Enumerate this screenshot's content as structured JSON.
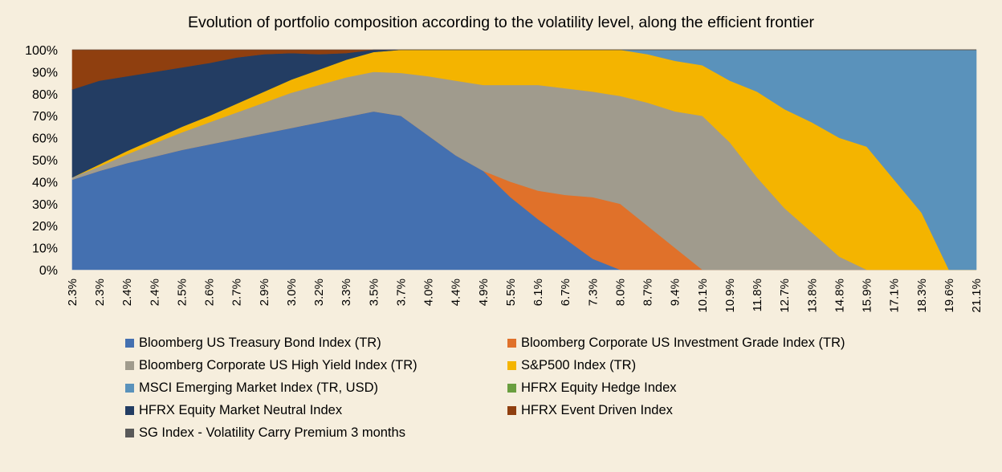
{
  "chart_data": {
    "type": "area",
    "stacked": true,
    "normalized": true,
    "title": "Evolution of portfolio composition according to the volatility level, along the efficient frontier",
    "xlabel": "",
    "ylabel": "",
    "ylim": [
      0,
      100
    ],
    "y_ticks": [
      "0%",
      "10%",
      "20%",
      "30%",
      "40%",
      "50%",
      "60%",
      "70%",
      "80%",
      "90%",
      "100%"
    ],
    "x_tick_labels": [
      "2.3%",
      "2.3%",
      "2.4%",
      "2.4%",
      "2.5%",
      "2.6%",
      "2.7%",
      "2.9%",
      "3.0%",
      "3.2%",
      "3.3%",
      "3.5%",
      "3.7%",
      "4.0%",
      "4.4%",
      "4.9%",
      "5.5%",
      "6.1%",
      "6.7%",
      "7.3%",
      "8.0%",
      "8.7%",
      "9.4%",
      "10.1%",
      "10.9%",
      "11.8%",
      "12.7%",
      "13.8%",
      "14.8%",
      "15.9%",
      "17.1%",
      "18.3%",
      "19.6%",
      "21.1%"
    ],
    "grid": false,
    "legend_position": "bottom",
    "series": [
      {
        "name": "Bloomberg US Treasury Bond Index (TR)",
        "color": "#4470b0",
        "values": [
          41,
          45,
          48.5,
          51.5,
          54.5,
          57,
          59.5,
          62,
          64.5,
          67,
          69.5,
          72,
          70,
          61,
          52,
          45,
          33,
          23,
          14,
          5,
          0,
          0,
          0,
          0,
          0,
          0,
          0,
          0,
          0,
          0,
          0,
          0,
          0,
          0
        ]
      },
      {
        "name": "Bloomberg Corporate US Investment Grade Index (TR)",
        "color": "#e0712a",
        "values": [
          0,
          0,
          0,
          0,
          0,
          0,
          0,
          0,
          0,
          0,
          0,
          0,
          0,
          0,
          0,
          0,
          7,
          13,
          20,
          28,
          30,
          20,
          10,
          0,
          0,
          0,
          0,
          0,
          0,
          0,
          0,
          0,
          0,
          0
        ]
      },
      {
        "name": "Bloomberg Corporate US High Yield Index (TR)",
        "color": "#a09b8d",
        "values": [
          1,
          2,
          4,
          6,
          8,
          10,
          12,
          14,
          16,
          17,
          18,
          18,
          19.5,
          27,
          34,
          39,
          44,
          48,
          48.5,
          48,
          49,
          56,
          62,
          70,
          58,
          42,
          28,
          17,
          6,
          0,
          0,
          0,
          0,
          0
        ]
      },
      {
        "name": "S&P500 Index (TR)",
        "color": "#f4b400",
        "values": [
          0,
          1,
          1.5,
          2,
          2.5,
          3,
          4,
          5,
          6,
          7,
          8,
          9,
          10.5,
          12,
          14,
          16,
          16,
          16,
          17.5,
          19,
          21,
          22,
          23,
          23,
          28,
          39,
          45,
          50,
          54,
          56,
          41,
          26,
          0,
          0
        ]
      },
      {
        "name": "MSCI Emerging Market Index (TR, USD)",
        "color": "#5a92bb",
        "values": [
          0,
          0,
          0,
          0,
          0,
          0,
          0,
          0,
          0,
          0,
          0,
          0,
          0,
          0,
          0,
          0,
          0,
          0,
          0,
          0,
          0,
          2,
          5,
          7,
          14,
          19,
          27,
          33,
          40,
          44,
          59,
          74,
          100,
          100
        ]
      },
      {
        "name": "HFRX Equity Hedge Index",
        "color": "#6a9e3f",
        "values": [
          0,
          0,
          0,
          0,
          0,
          0,
          0,
          0,
          0,
          0,
          0,
          0,
          0,
          0,
          0,
          0,
          0,
          0,
          0,
          0,
          0,
          0,
          0,
          0,
          0,
          0,
          0,
          0,
          0,
          0,
          0,
          0,
          0,
          0
        ]
      },
      {
        "name": "HFRX Equity Market Neutral Index",
        "color": "#233d63",
        "values": [
          40,
          38,
          34,
          30.5,
          27,
          24,
          21,
          17,
          12,
          7,
          3,
          1,
          0,
          0,
          0,
          0,
          0,
          0,
          0,
          0,
          0,
          0,
          0,
          0,
          0,
          0,
          0,
          0,
          0,
          0,
          0,
          0,
          0,
          0
        ]
      },
      {
        "name": "HFRX Event Driven Index",
        "color": "#8f3f0f",
        "values": [
          18,
          14,
          12,
          10,
          8,
          6,
          3.5,
          2,
          1.5,
          2,
          1.5,
          0,
          0,
          0,
          0,
          0,
          0,
          0,
          0,
          0,
          0,
          0,
          0,
          0,
          0,
          0,
          0,
          0,
          0,
          0,
          0,
          0,
          0,
          0
        ]
      },
      {
        "name": "SG Index - Volatility Carry Premium 3 months",
        "color": "#595959",
        "values": [
          0,
          0,
          0,
          0,
          0,
          0,
          0,
          0,
          0,
          0,
          0,
          0,
          0,
          0,
          0,
          0,
          0,
          0,
          0,
          0,
          0,
          0,
          0,
          0,
          0,
          0,
          0,
          0,
          0,
          0,
          0,
          0,
          0,
          0
        ]
      }
    ]
  }
}
